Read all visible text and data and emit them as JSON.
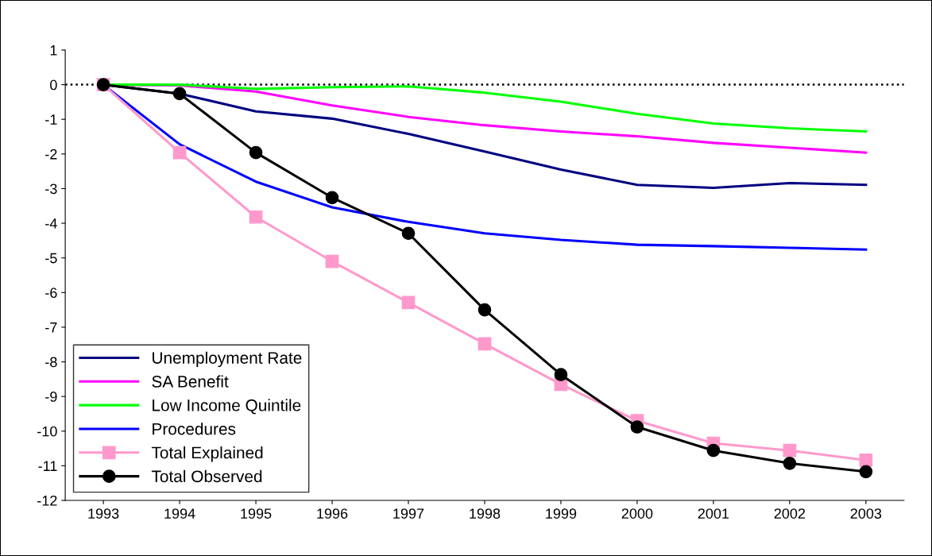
{
  "chart_data": {
    "type": "line",
    "categories": [
      "1993",
      "1994",
      "1995",
      "1996",
      "1997",
      "1998",
      "1999",
      "2000",
      "2001",
      "2002",
      "2003"
    ],
    "ylim": [
      -12,
      1
    ],
    "yticks": [
      -12,
      -11,
      -10,
      -9,
      -8,
      -7,
      -6,
      -5,
      -4,
      -3,
      -2,
      -1,
      0,
      1
    ],
    "grid": false,
    "legend": "bottom left",
    "ref_lines": [
      {
        "axis": "y",
        "value": 0,
        "color": "#000000",
        "line_style": "dotted"
      }
    ],
    "series": [
      {
        "name": "Unemployment Rate",
        "color": "#000080",
        "marker": "none",
        "values": [
          0,
          -0.26,
          -0.77,
          -0.98,
          -1.42,
          -1.93,
          -2.45,
          -2.89,
          -2.98,
          -2.84,
          -2.89
        ]
      },
      {
        "name": "SA Benefit",
        "color": "#ff00ff",
        "marker": "none",
        "values": [
          0,
          -0.02,
          -0.2,
          -0.6,
          -0.93,
          -1.17,
          -1.35,
          -1.49,
          -1.68,
          -1.82,
          -1.96
        ]
      },
      {
        "name": "Low Income Quintile",
        "color": "#00ff00",
        "marker": "none",
        "values": [
          0,
          0,
          -0.12,
          -0.07,
          -0.05,
          -0.23,
          -0.49,
          -0.84,
          -1.12,
          -1.26,
          -1.35
        ]
      },
      {
        "name": "Procedures",
        "color": "#0000ff",
        "marker": "none",
        "values": [
          0,
          -1.72,
          -2.8,
          -3.54,
          -3.96,
          -4.29,
          -4.48,
          -4.62,
          -4.66,
          -4.71,
          -4.76
        ]
      },
      {
        "name": "Total Explained",
        "color": "#ff99cc",
        "marker": "square",
        "values": [
          0,
          -1.96,
          -3.82,
          -5.1,
          -6.29,
          -7.48,
          -8.65,
          -9.7,
          -10.35,
          -10.56,
          -10.84
        ]
      },
      {
        "name": "Total Observed",
        "color": "#000000",
        "marker": "circle",
        "values": [
          0,
          -0.26,
          -1.96,
          -3.26,
          -4.29,
          -6.5,
          -8.37,
          -9.88,
          -10.56,
          -10.93,
          -11.17
        ]
      }
    ]
  }
}
